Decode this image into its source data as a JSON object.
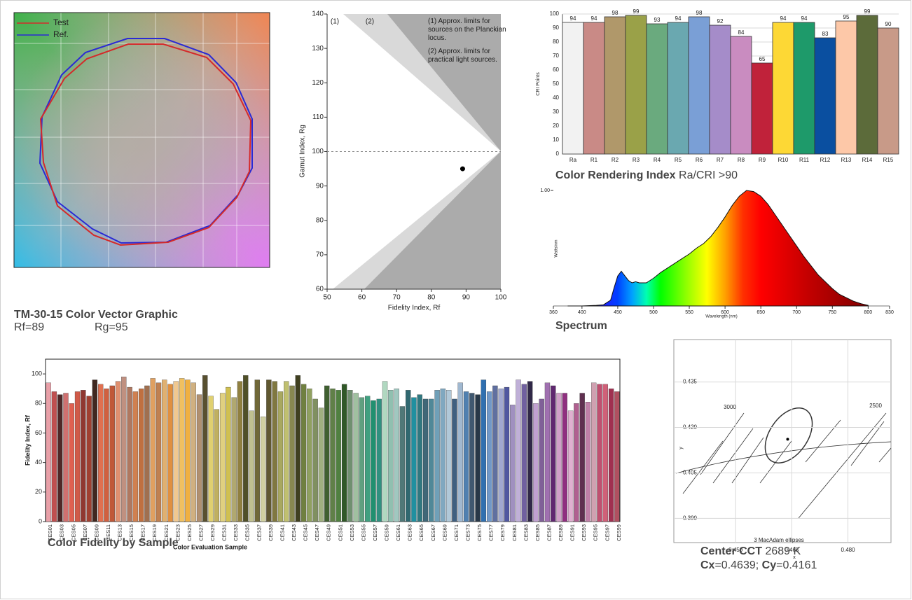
{
  "chart_data": [
    {
      "type": "vector",
      "title": "TM-30-15 Color Vector Graphic",
      "notes": [
        "Rf=89",
        "Rg=95"
      ],
      "series": [
        {
          "name": "Test",
          "color": "#d42a2a"
        },
        {
          "name": "Ref.",
          "color": "#2a2ad4"
        }
      ]
    },
    {
      "type": "scatter",
      "x": [
        89
      ],
      "y": [
        95
      ],
      "color": "#000000",
      "xlim": [
        50,
        100
      ],
      "ylim": [
        60,
        140
      ],
      "xticks": [
        50,
        60,
        70,
        80,
        90,
        100
      ],
      "yticks": [
        60,
        70,
        80,
        90,
        100,
        110,
        120,
        130,
        140
      ],
      "xlabel": "Fidelity Index, Rf",
      "ylabel": "Gamut Index, Rg",
      "reference_line": 100,
      "grid": false,
      "annotations": [
        "(1)",
        "(2)",
        "(1) Approx. limits for sources on the Planckian locus.",
        "(2) Approx. limits for practical light sources."
      ]
    },
    {
      "type": "bar",
      "title": "Color Rendering Index",
      "subtitle": "Ra/CRI >90",
      "ylabel": "CRI Points",
      "categories": [
        "Ra",
        "R1",
        "R2",
        "R3",
        "R4",
        "R5",
        "R6",
        "R7",
        "R8",
        "R9",
        "R10",
        "R11",
        "R12",
        "R13",
        "R14",
        "R15"
      ],
      "values": [
        94,
        94,
        98,
        99,
        93,
        94,
        98,
        92,
        84,
        65,
        94,
        94,
        83,
        95,
        99,
        90
      ],
      "colors": [
        "#f2f2f2",
        "#c98a86",
        "#b0986a",
        "#9aa148",
        "#6aaa7e",
        "#6aa8b0",
        "#7a9fd6",
        "#a58cc9",
        "#c98cc0",
        "#c0223a",
        "#fdd835",
        "#1e9a6a",
        "#0a4fa0",
        "#fdc8a8",
        "#5c6b3a",
        "#c89a88"
      ],
      "ylim": [
        0,
        100
      ],
      "yticks": [
        0,
        10,
        20,
        30,
        40,
        50,
        60,
        70,
        80,
        90,
        100
      ],
      "grid": true,
      "show_values": true
    },
    {
      "type": "area",
      "title": "Spectrum",
      "xlabel": "Wavelength (nm)",
      "ylabel": "Watts/nm",
      "x": [
        380,
        400,
        420,
        430,
        440,
        445,
        450,
        455,
        460,
        465,
        470,
        475,
        480,
        490,
        500,
        510,
        520,
        530,
        540,
        550,
        560,
        570,
        580,
        590,
        600,
        610,
        620,
        630,
        640,
        650,
        660,
        670,
        680,
        690,
        700,
        710,
        720,
        730,
        740,
        750,
        760,
        770,
        780,
        790,
        800
      ],
      "values": [
        0,
        0,
        0.005,
        0.01,
        0.05,
        0.16,
        0.26,
        0.3,
        0.26,
        0.22,
        0.2,
        0.21,
        0.2,
        0.2,
        0.24,
        0.29,
        0.33,
        0.37,
        0.41,
        0.45,
        0.5,
        0.54,
        0.6,
        0.68,
        0.77,
        0.87,
        0.95,
        1.0,
        0.99,
        0.95,
        0.88,
        0.79,
        0.7,
        0.61,
        0.52,
        0.43,
        0.35,
        0.27,
        0.21,
        0.15,
        0.1,
        0.07,
        0.04,
        0.02,
        0.005
      ],
      "xlim": [
        360,
        830
      ],
      "ylim": [
        0,
        1
      ],
      "xticks": [
        360,
        400,
        450,
        500,
        550,
        600,
        650,
        700,
        750,
        800,
        830
      ],
      "yticks": [
        {
          "value": 1,
          "label": "1.00"
        }
      ],
      "grid": false
    },
    {
      "type": "bar",
      "title": "Color Fidelity by Sample",
      "xlabel": "Color Evaluation Sample",
      "ylabel": "Fidelity Index, Rf",
      "categories": [
        "CES01",
        null,
        "CES03",
        null,
        "CES05",
        null,
        "CES07",
        null,
        "CES09",
        null,
        "CES11",
        null,
        "CES13",
        null,
        "CES15",
        null,
        "CES17",
        null,
        "CES19",
        null,
        "CES21",
        null,
        "CES23",
        null,
        "CES25",
        null,
        "CES27",
        null,
        "CES29",
        null,
        "CES31",
        null,
        "CES33",
        null,
        "CES35",
        null,
        "CES37",
        null,
        "CES39",
        null,
        "CES41",
        null,
        "CES43",
        null,
        "CES45",
        null,
        "CES47",
        null,
        "CES49",
        null,
        "CES51",
        null,
        "CES53",
        null,
        "CES55",
        null,
        "CES57",
        null,
        "CES59",
        null,
        "CES61",
        null,
        "CES63",
        null,
        "CES65",
        null,
        "CES67",
        null,
        "CES69",
        null,
        "CES71",
        null,
        "CES73",
        null,
        "CES75",
        null,
        "CES77",
        null,
        "CES79",
        null,
        "CES81",
        null,
        "CES83",
        null,
        "CES85",
        null,
        "CES87",
        null,
        "CES89",
        null,
        "CES91",
        null,
        "CES93",
        null,
        "CES95",
        null,
        "CES97",
        null,
        "CES99"
      ],
      "values": [
        94,
        88,
        86,
        87,
        80,
        88,
        89,
        85,
        96,
        93,
        90,
        92,
        95,
        98,
        91,
        88,
        90,
        92,
        97,
        94,
        96,
        93,
        95,
        97,
        96,
        94,
        86,
        99,
        85,
        76,
        87,
        91,
        84,
        95,
        99,
        75,
        96,
        71,
        96,
        95,
        88,
        95,
        92,
        99,
        93,
        90,
        83,
        77,
        92,
        90,
        89,
        93,
        89,
        87,
        84,
        85,
        82,
        83,
        95,
        89,
        90,
        78,
        89,
        84,
        86,
        83,
        83,
        89,
        90,
        89,
        83,
        94,
        88,
        87,
        86,
        96,
        88,
        92,
        90,
        91,
        79,
        96,
        93,
        95,
        80,
        83,
        94,
        92,
        87,
        87,
        75,
        80,
        87,
        81,
        94,
        93,
        93,
        90,
        88
      ],
      "colors": [
        "#e8a0a8",
        "#c05050",
        "#502828",
        "#d07070",
        "#e06050",
        "#d05a48",
        "#903830",
        "#a04030",
        "#402820",
        "#e07050",
        "#d06040",
        "#c05838",
        "#e09070",
        "#c09080",
        "#b07860",
        "#d08050",
        "#c07040",
        "#a07050",
        "#e0a060",
        "#c08050",
        "#e0b070",
        "#e09040",
        "#f0c890",
        "#f0c060",
        "#f0b040",
        "#d0b080",
        "#b09070",
        "#585030",
        "#e0d070",
        "#c0b060",
        "#e0d080",
        "#d0c050",
        "#b0a870",
        "#908040",
        "#505028",
        "#c0c090",
        "#706838",
        "#d0d0a0",
        "#605830",
        "#807840",
        "#a8a860",
        "#c0c070",
        "#888850",
        "#404020",
        "#708040",
        "#90a060",
        "#809060",
        "#a0b080",
        "#406030",
        "#608048",
        "#508040",
        "#305828",
        "#709070",
        "#a0c0a0",
        "#60a080",
        "#40a080",
        "#209070",
        "#309080",
        "#b0d8c0",
        "#90c0b0",
        "#a0c8c0",
        "#507878",
        "#306870",
        "#2090a0",
        "#307880",
        "#406878",
        "#508898",
        "#70a0b8",
        "#80a8c0",
        "#b0c8d8",
        "#406080",
        "#a0b8d0",
        "#5080b0",
        "#405870",
        "#283848",
        "#3070b0",
        "#7098c8",
        "#6070a0",
        "#a0a8d0",
        "#5058a0",
        "#a090c0",
        "#c0b0d8",
        "#7060a0",
        "#302848",
        "#c0a0d0",
        "#806098",
        "#a070b0",
        "#602870",
        "#d0a0c8",
        "#903080",
        "#e0b0d0",
        "#b06090",
        "#603050",
        "#c080a8",
        "#d0a0b0",
        "#c05070",
        "#d06078",
        "#a03050",
        "#b05060"
      ],
      "ylim": [
        0,
        110
      ],
      "yticks": [
        0,
        20,
        40,
        60,
        80,
        100
      ],
      "grid": false
    },
    {
      "type": "scatter",
      "title": "Center CCT",
      "cct": "2689 K",
      "cx_label": "Cx",
      "cx_text": "=0.4639;",
      "cy_label": "Cy",
      "cy_text": "=0.4161",
      "x": [
        0.4639
      ],
      "y": [
        0.4161
      ],
      "color": "#000000",
      "xlabel": "x",
      "ylabel": "y",
      "xlim": [
        0.4335,
        0.4915
      ],
      "ylim": [
        0.382,
        0.449
      ],
      "xticks": [
        {
          "value": 0.45,
          "label": "0.450"
        },
        {
          "value": 0.465,
          "label": "0.465"
        },
        {
          "value": 0.48,
          "label": "0.480"
        }
      ],
      "yticks": [
        {
          "value": 0.39,
          "label": "0.390"
        },
        {
          "value": 0.405,
          "label": "0.405"
        },
        {
          "value": 0.42,
          "label": "0.420"
        },
        {
          "value": 0.435,
          "label": "0.435"
        }
      ],
      "grid": true,
      "annotations": [
        "3000",
        "2500",
        "3 MacAdam ellipses"
      ]
    }
  ]
}
